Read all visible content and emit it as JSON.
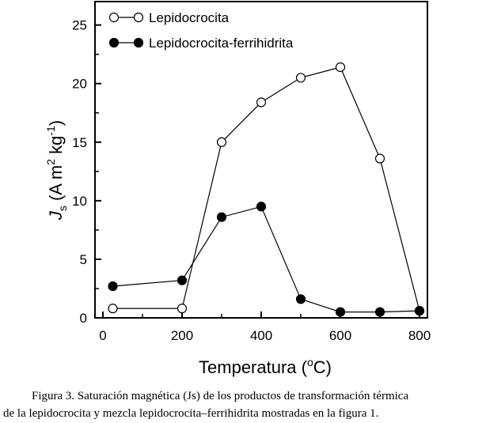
{
  "chart_data": {
    "type": "line",
    "xlabel": "Temperatura (ºC)",
    "ylabel": "Js (A m2 kg-1)",
    "xlim": [
      -20,
      820
    ],
    "ylim": [
      0,
      27
    ],
    "x_ticks": [
      "0",
      "200",
      "400",
      "600",
      "800"
    ],
    "y_ticks": [
      "0",
      "5",
      "10",
      "15",
      "20",
      "25"
    ],
    "grid": false,
    "legend_position": "top-left",
    "series": [
      {
        "name": "Lepidocrocita",
        "marker": "open-circle",
        "x": [
          25,
          200,
          300,
          400,
          500,
          600,
          700,
          800
        ],
        "y": [
          0.8,
          0.8,
          15.0,
          18.4,
          20.5,
          21.4,
          13.6,
          0.6
        ]
      },
      {
        "name": "Lepidocrocita-ferrihidrita",
        "marker": "filled-circle",
        "x": [
          25,
          200,
          300,
          400,
          500,
          600,
          700,
          800
        ],
        "y": [
          2.7,
          3.2,
          8.6,
          9.5,
          1.6,
          0.5,
          0.5,
          0.6
        ]
      }
    ]
  },
  "axis_titles": {
    "x_main": "Temperatura (",
    "x_unit_sup": "o",
    "x_unit": "C)",
    "y_symbol": "J",
    "y_sub": "s",
    "y_units_a": " (A m",
    "y_sup1": "2",
    "y_units_b": " kg",
    "y_sup2": "-1",
    "y_units_c": ")"
  },
  "caption": {
    "line1": "Figura 3. Saturación magnética (Js) de los productos de transformación térmica",
    "line2": "de la lepidocrocita y mezcla lepidocrocita–ferrihidrita mostradas en la figura 1."
  }
}
